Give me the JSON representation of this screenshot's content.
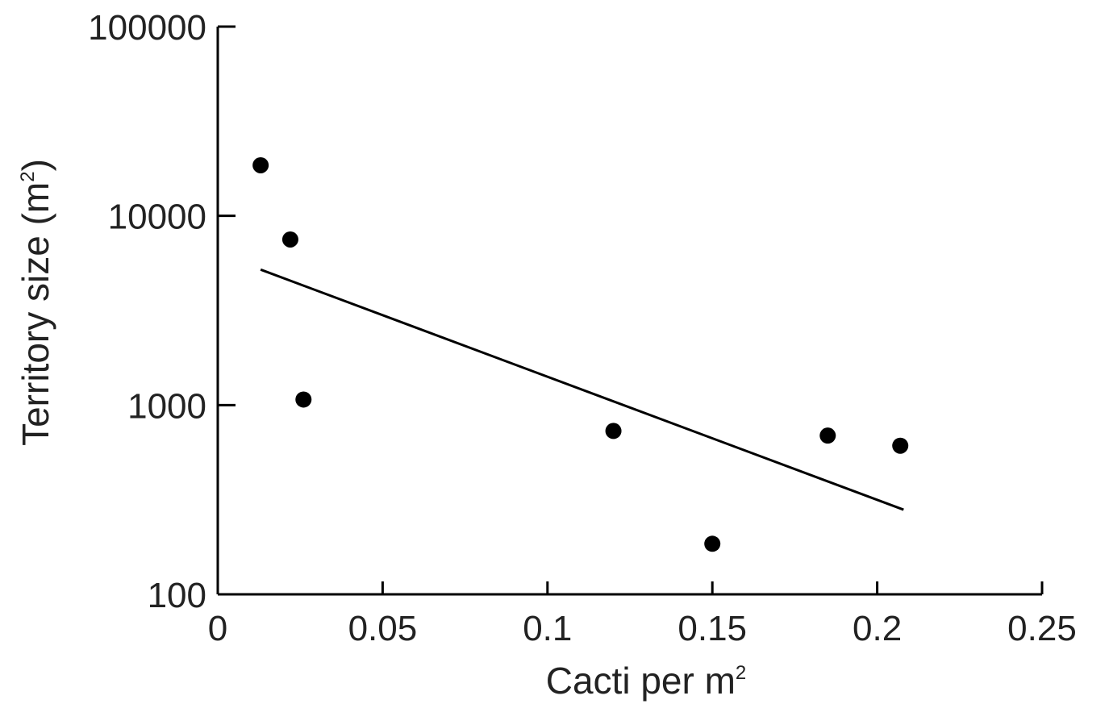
{
  "chart_data": {
    "type": "scatter",
    "xlabel": "Cacti per m",
    "xlabel_superscript": "2",
    "ylabel": "Territory size (m",
    "ylabel_superscript": "2",
    "ylabel_suffix": ")",
    "xlim": [
      0,
      0.25
    ],
    "ylim": [
      100,
      100000
    ],
    "y_scale": "log",
    "x_ticks": [
      0,
      0.05,
      0.1,
      0.15,
      0.2,
      0.25
    ],
    "x_tick_labels": [
      "0",
      "0.05",
      "0.1",
      "0.15",
      "0.2",
      "0.25"
    ],
    "y_ticks": [
      100,
      1000,
      10000,
      100000
    ],
    "y_tick_labels": [
      "100",
      "1000",
      "10000",
      "100000"
    ],
    "grid": false,
    "series": [
      {
        "points": [
          {
            "x": 0.013,
            "y": 18500
          },
          {
            "x": 0.022,
            "y": 7500
          },
          {
            "x": 0.026,
            "y": 1070
          },
          {
            "x": 0.12,
            "y": 730
          },
          {
            "x": 0.15,
            "y": 185
          },
          {
            "x": 0.185,
            "y": 690
          },
          {
            "x": 0.207,
            "y": 610
          }
        ]
      }
    ],
    "trend_line": {
      "x": [
        0.013,
        0.208
      ],
      "y": [
        5200,
        280
      ]
    }
  }
}
